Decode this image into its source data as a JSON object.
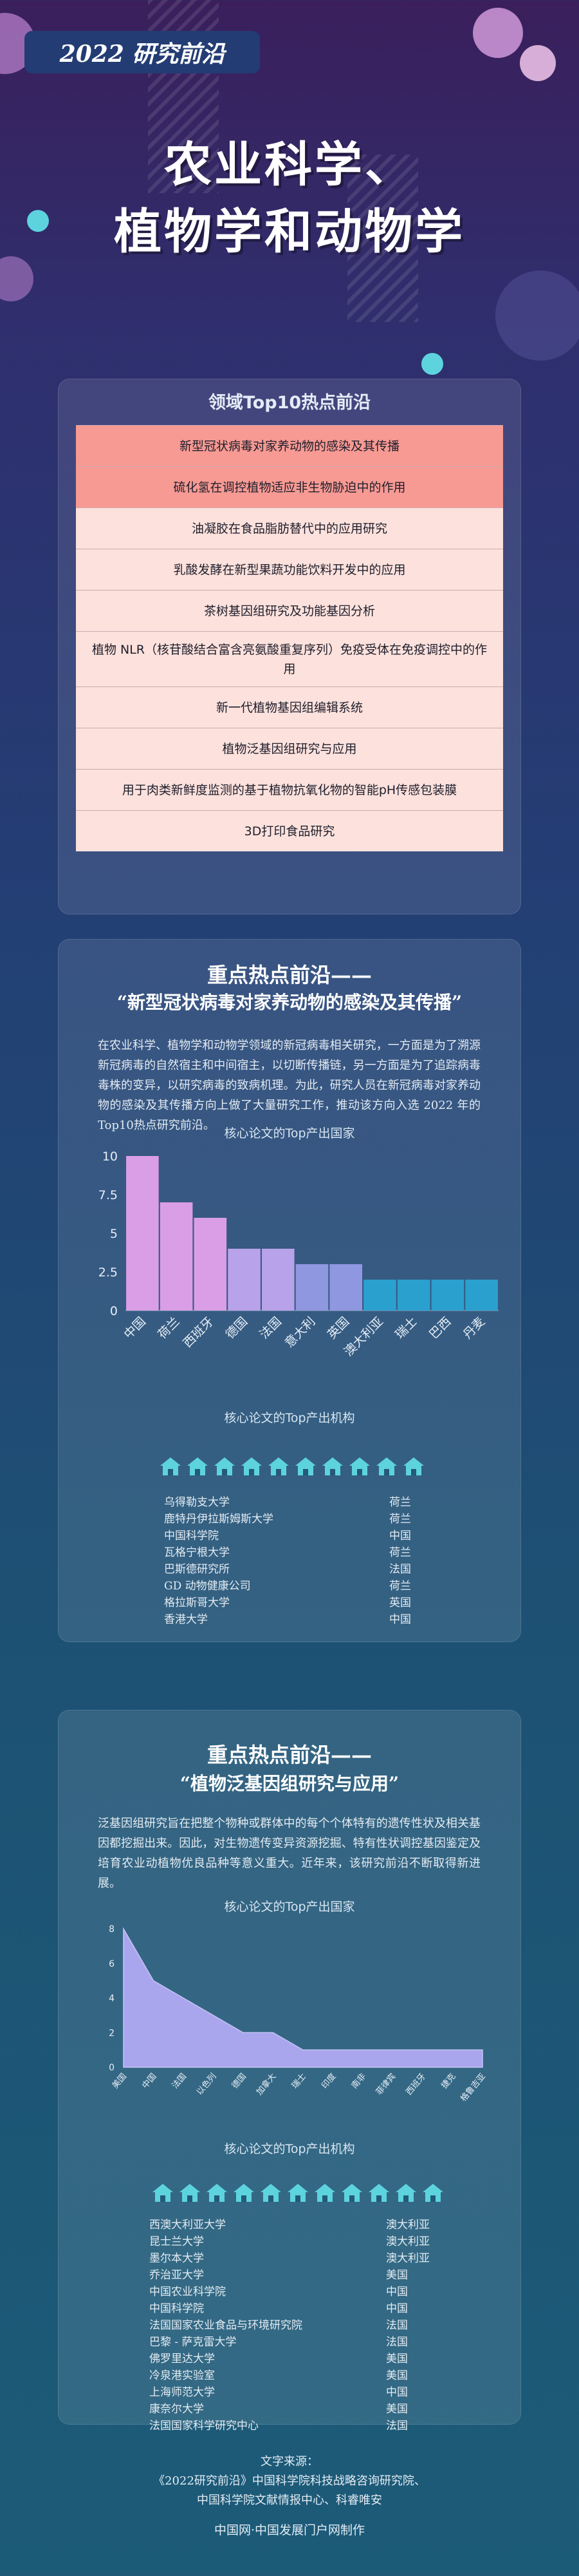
{
  "header": {
    "badge": "2022 研究前沿",
    "title_line1": "农业科学、",
    "title_line2": "植物学和动物学"
  },
  "top10": {
    "title": "领域Top10热点前沿",
    "items": [
      {
        "label": "新型冠状病毒对家养动物的感染及其传播",
        "hot": true
      },
      {
        "label": "硫化氢在调控植物适应非生物胁迫中的作用",
        "hot": true
      },
      {
        "label": "油凝胶在食品脂肪替代中的应用研究",
        "hot": false
      },
      {
        "label": "乳酸发酵在新型果蔬功能饮料开发中的应用",
        "hot": false
      },
      {
        "label": "茶树基因组研究及功能基因分析",
        "hot": false
      },
      {
        "label": "植物 NLR（核苷酸结合富含亮氨酸重复序列）免疫受体在免疫调控中的作用",
        "hot": false
      },
      {
        "label": "新一代植物基因组编辑系统",
        "hot": false
      },
      {
        "label": "植物泛基因组研究与应用",
        "hot": false
      },
      {
        "label": "用于肉类新鲜度监测的基于植物抗氧化物的智能pH传感包装膜",
        "hot": false
      },
      {
        "label": "3D打印食品研究",
        "hot": false
      }
    ]
  },
  "section1": {
    "heading": "重点热点前沿——",
    "subheading": "“新型冠状病毒对家养动物的感染及其传播”",
    "paragraph": "在农业科学、植物学和动物学领域的新冠病毒相关研究，一方面是为了溯源新冠病毒的自然宿主和中间宿主，以切断传播链，另一方面是为了追踪病毒毒株的变异，以研究病毒的致病机理。为此，研究人员在新冠病毒对家养动物的感染及其传播方向上做了大量研究工作，推动该方向入选 2022 年的Top10热点研究前沿。",
    "chart_label": "核心论文的Top产出国家",
    "inst_label": "核心论文的Top产出机构",
    "institutions": [
      {
        "name": "乌得勒支大学",
        "country": "荷兰"
      },
      {
        "name": "鹿特丹伊拉斯姆斯大学",
        "country": "荷兰"
      },
      {
        "name": "中国科学院",
        "country": "中国"
      },
      {
        "name": "瓦格宁根大学",
        "country": "荷兰"
      },
      {
        "name": "巴斯德研究所",
        "country": "法国"
      },
      {
        "name": "GD 动物健康公司",
        "country": "荷兰"
      },
      {
        "name": "格拉斯哥大学",
        "country": "英国"
      },
      {
        "name": "香港大学",
        "country": "中国"
      }
    ]
  },
  "section2": {
    "heading": "重点热点前沿——",
    "subheading": "“植物泛基因组研究与应用”",
    "paragraph": "泛基因组研究旨在把整个物种或群体中的每个个体特有的遗传性状及相关基因都挖掘出来。因此，对生物遗传变异资源挖掘、特有性状调控基因鉴定及培育农业动植物优良品种等意义重大。近年来，该研究前沿不断取得新进展。",
    "chart_label": "核心论文的Top产出国家",
    "inst_label": "核心论文的Top产出机构",
    "institutions": [
      {
        "name": "西澳大利亚大学",
        "country": "澳大利亚"
      },
      {
        "name": "昆士兰大学",
        "country": "澳大利亚"
      },
      {
        "name": "墨尔本大学",
        "country": "澳大利亚"
      },
      {
        "name": "乔治亚大学",
        "country": "美国"
      },
      {
        "name": "中国农业科学院",
        "country": "中国"
      },
      {
        "name": "中国科学院",
        "country": "中国"
      },
      {
        "name": "法国国家农业食品与环境研究院",
        "country": "法国"
      },
      {
        "name": "巴黎 - 萨克雷大学",
        "country": "法国"
      },
      {
        "name": "佛罗里达大学",
        "country": "美国"
      },
      {
        "name": "冷泉港实验室",
        "country": "美国"
      },
      {
        "name": "上海师范大学",
        "country": "中国"
      },
      {
        "name": "康奈尔大学",
        "country": "美国"
      },
      {
        "name": "法国国家科学研究中心",
        "country": "法国"
      }
    ]
  },
  "source": {
    "line1": "文字来源：",
    "line2": "《2022研究前沿》中国科学院科技战略咨询研究院、",
    "line3": "中国科学院文献情报中心、科睿唯安",
    "credit": "中国网·中国发展门户网制作"
  },
  "colors": {
    "hot_row": "#f79a93",
    "normal_row": "#fde1dc",
    "bar_violet": "#d99ee6",
    "bar_purple": "#b8a2ea",
    "bar_indigo": "#8f97e0",
    "bar_blue": "#2aa0cf",
    "area_fill": "#a9a6ee",
    "house_icon": "#5dd3de"
  },
  "chart_data": [
    {
      "type": "bar",
      "title": "核心论文的Top产出国家",
      "categories": [
        "中国",
        "荷兰",
        "西班牙",
        "德国",
        "法国",
        "意大利",
        "英国",
        "澳大利亚",
        "瑞士",
        "巴西",
        "丹麦"
      ],
      "values": [
        10,
        7,
        6,
        4,
        4,
        3,
        3,
        2,
        2,
        2,
        2
      ],
      "ylim": [
        0,
        10
      ],
      "yticks": [
        0,
        2.5,
        5,
        7.5,
        10
      ],
      "ytick_labels": [
        "0",
        "2.5",
        "5",
        "7.5",
        "10"
      ],
      "xlabel": "",
      "ylabel": "",
      "grid": false
    },
    {
      "type": "area",
      "title": "核心论文的Top产出国家",
      "categories": [
        "美国",
        "中国",
        "法国",
        "以色列",
        "德国",
        "加拿大",
        "瑞士",
        "印度",
        "南非",
        "菲律宾",
        "西班牙",
        "捷克",
        "格鲁吉亚"
      ],
      "values": [
        8,
        5,
        4,
        3,
        2,
        2,
        1,
        1,
        1,
        1,
        1,
        1,
        1
      ],
      "ylim": [
        0,
        8
      ],
      "yticks": [
        0,
        2,
        4,
        6,
        8
      ],
      "ytick_labels": [
        "0",
        "2",
        "4",
        "6",
        "8"
      ],
      "xlabel": "",
      "ylabel": "",
      "grid": false
    }
  ]
}
